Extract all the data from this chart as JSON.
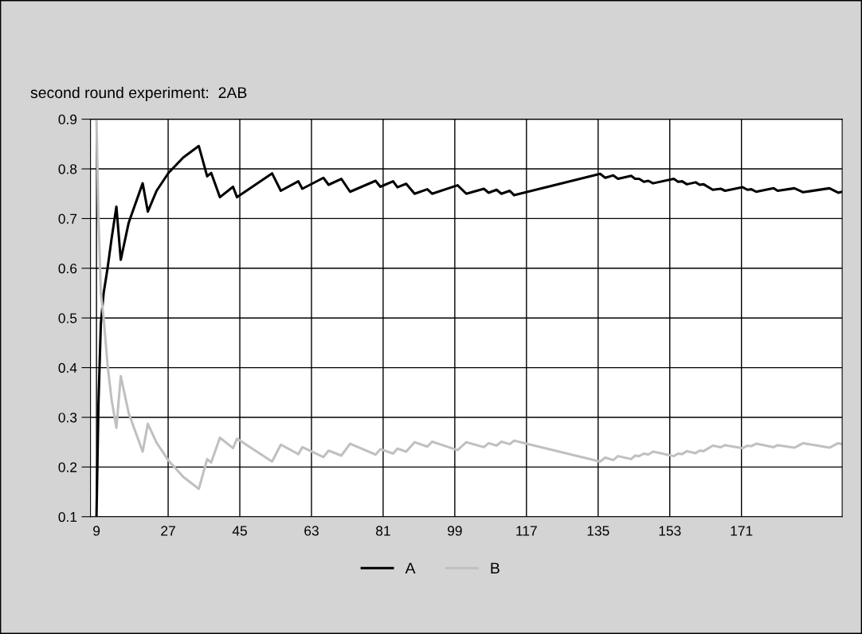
{
  "chart_data": {
    "type": "line",
    "title": "second round experiment:  2AB",
    "x": [
      9,
      9.5,
      10.1,
      10.8,
      11.8,
      12.8,
      14,
      15.1,
      17.1,
      20.6,
      21.9,
      24.1,
      27.1,
      30.8,
      34.7,
      36.8,
      37.8,
      40,
      43.3,
      44.3,
      53.1,
      55.3,
      59.7,
      60.7,
      66,
      67.3,
      70.5,
      72.7,
      79.1,
      80.3,
      83.5,
      84.6,
      86.8,
      88.9,
      92.1,
      93.3,
      99.7,
      101.9,
      106.3,
      107.5,
      109.5,
      110.7,
      112.8,
      113.9,
      135.5,
      136.8,
      138.8,
      140,
      143.3,
      144.3,
      145.3,
      146.5,
      147.6,
      148.8,
      154,
      155.1,
      156.1,
      157.3,
      159.5,
      160.5,
      161.5,
      163.8,
      165.8,
      166.9,
      171.3,
      172.5,
      173.5,
      174.7,
      179.1,
      180.1,
      184.3,
      186.5,
      193.1,
      195.3,
      196.3
    ],
    "series": [
      {
        "name": "A",
        "color": "#000000",
        "values": [
          0.1,
          0.329,
          0.489,
          0.55,
          0.601,
          0.66,
          0.724,
          0.617,
          0.692,
          0.771,
          0.714,
          0.756,
          0.792,
          0.823,
          0.846,
          0.785,
          0.792,
          0.743,
          0.764,
          0.743,
          0.791,
          0.756,
          0.775,
          0.76,
          0.782,
          0.768,
          0.78,
          0.754,
          0.776,
          0.764,
          0.775,
          0.763,
          0.77,
          0.75,
          0.759,
          0.75,
          0.767,
          0.75,
          0.76,
          0.752,
          0.758,
          0.75,
          0.756,
          0.747,
          0.79,
          0.782,
          0.787,
          0.78,
          0.786,
          0.78,
          0.78,
          0.774,
          0.776,
          0.771,
          0.78,
          0.774,
          0.775,
          0.769,
          0.773,
          0.768,
          0.769,
          0.758,
          0.76,
          0.756,
          0.763,
          0.758,
          0.759,
          0.754,
          0.761,
          0.756,
          0.761,
          0.753,
          0.761,
          0.752,
          0.754
        ]
      },
      {
        "name": "B",
        "color": "#c0c0c0",
        "values": [
          0.9,
          0.703,
          0.55,
          0.5,
          0.404,
          0.335,
          0.279,
          0.383,
          0.308,
          0.231,
          0.287,
          0.249,
          0.213,
          0.18,
          0.156,
          0.216,
          0.209,
          0.259,
          0.238,
          0.257,
          0.211,
          0.245,
          0.226,
          0.24,
          0.22,
          0.233,
          0.223,
          0.247,
          0.225,
          0.236,
          0.227,
          0.237,
          0.231,
          0.25,
          0.241,
          0.251,
          0.234,
          0.25,
          0.24,
          0.248,
          0.243,
          0.251,
          0.246,
          0.253,
          0.211,
          0.219,
          0.214,
          0.222,
          0.216,
          0.223,
          0.222,
          0.227,
          0.225,
          0.231,
          0.222,
          0.227,
          0.226,
          0.232,
          0.228,
          0.233,
          0.232,
          0.243,
          0.24,
          0.244,
          0.238,
          0.243,
          0.242,
          0.247,
          0.24,
          0.244,
          0.239,
          0.248,
          0.239,
          0.248,
          0.246
        ]
      }
    ],
    "xlim": [
      7.5,
      196.3
    ],
    "xticks": [
      9,
      27,
      45,
      63,
      81,
      99,
      117,
      135,
      153,
      171
    ],
    "ylim": [
      0.1,
      0.9
    ],
    "yticks": [
      0.1,
      0.2,
      0.3,
      0.4,
      0.5,
      0.6,
      0.7,
      0.8,
      0.9
    ],
    "grid": true,
    "legend": "bottom",
    "marker": "none",
    "line_style": "solid"
  }
}
